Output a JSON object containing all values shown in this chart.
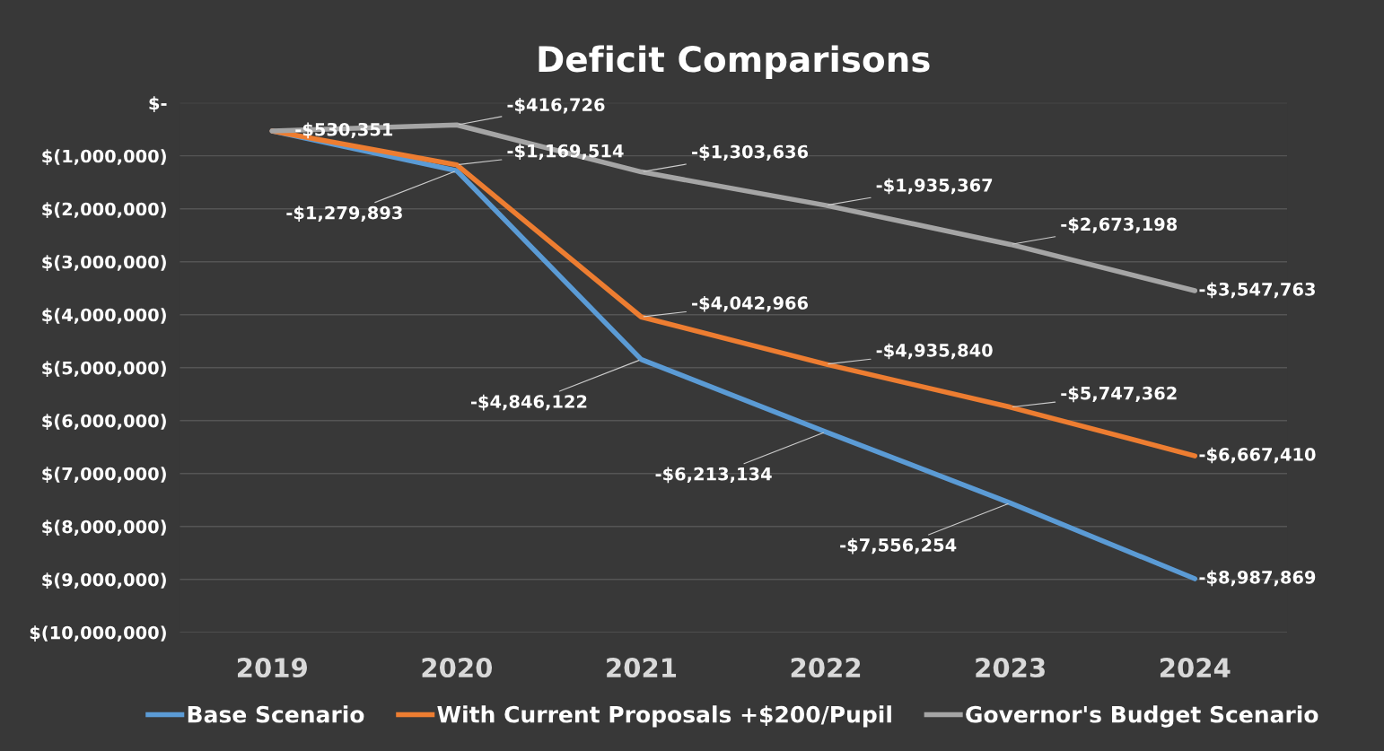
{
  "chart_data": {
    "type": "line",
    "title": "Deficit Comparisons",
    "categories": [
      "2019",
      "2020",
      "2021",
      "2022",
      "2023",
      "2024"
    ],
    "series": [
      {
        "name": "Base Scenario",
        "color": "#5b9bd5",
        "values": [
          -530351,
          -1279893,
          -4846122,
          -6213134,
          -7556254,
          -8987869
        ],
        "value_labels": [
          "-$530,351",
          "-$1,279,893",
          "-$4,846,122",
          "-$6,213,134",
          "-$7,556,254",
          "-$8,987,869"
        ]
      },
      {
        "name": "With Current Proposals +$200/Pupil",
        "color": "#ed7d31",
        "values": [
          -530000,
          -1169514,
          -4042966,
          -4935840,
          -5747362,
          -6667410
        ],
        "value_labels": [
          null,
          "-$1,169,514",
          "-$4,042,966",
          "-$4,935,840",
          "-$5,747,362",
          "-$6,667,410"
        ]
      },
      {
        "name": "Governor's Budget Scenario",
        "color": "#a5a5a5",
        "values": [
          -530000,
          -416726,
          -1303636,
          -1935367,
          -2673198,
          -3547763
        ],
        "value_labels": [
          null,
          "-$416,726",
          "-$1,303,636",
          "-$1,935,367",
          "-$2,673,198",
          "-$3,547,763"
        ]
      }
    ],
    "ylim": [
      -10000000,
      0
    ],
    "yticks": [
      {
        "value": 0,
        "label": "$-"
      },
      {
        "value": -1000000,
        "label": "$(1,000,000)"
      },
      {
        "value": -2000000,
        "label": "$(2,000,000)"
      },
      {
        "value": -3000000,
        "label": "$(3,000,000)"
      },
      {
        "value": -4000000,
        "label": "$(4,000,000)"
      },
      {
        "value": -5000000,
        "label": "$(5,000,000)"
      },
      {
        "value": -6000000,
        "label": "$(6,000,000)"
      },
      {
        "value": -7000000,
        "label": "$(7,000,000)"
      },
      {
        "value": -8000000,
        "label": "$(8,000,000)"
      },
      {
        "value": -9000000,
        "label": "$(9,000,000)"
      },
      {
        "value": -10000000,
        "label": "$(10,000,000)"
      }
    ],
    "grid": "y",
    "legend": "bottom",
    "marker": "none",
    "line_style": "solid"
  }
}
